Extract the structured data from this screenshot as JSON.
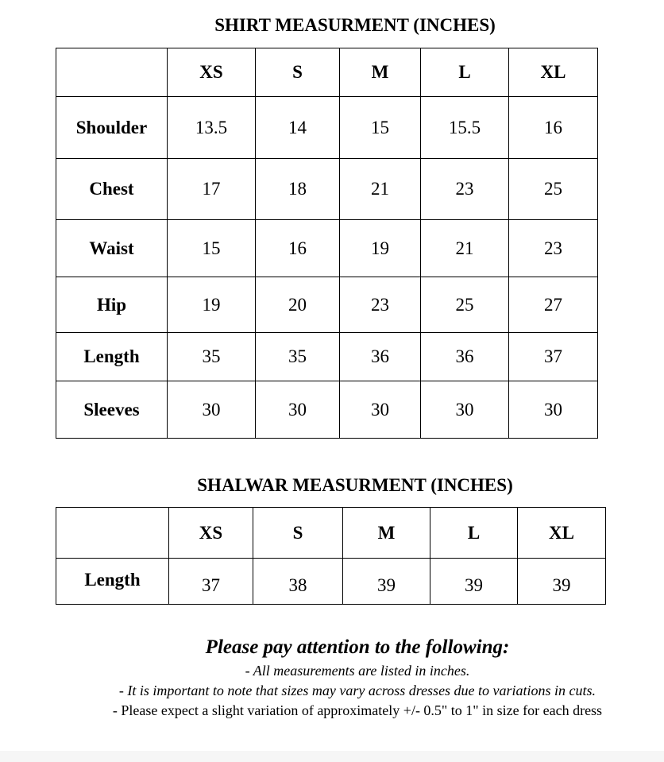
{
  "shirt": {
    "title": "SHIRT MEASURMENT (INCHES)",
    "sizes": [
      "XS",
      "S",
      "M",
      "L",
      "XL"
    ],
    "rows": [
      {
        "label": "Shoulder",
        "values": [
          "13.5",
          "14",
          "15",
          "15.5",
          "16"
        ]
      },
      {
        "label": "Chest",
        "values": [
          "17",
          "18",
          "21",
          "23",
          "25"
        ]
      },
      {
        "label": "Waist",
        "values": [
          "15",
          "16",
          "19",
          "21",
          "23"
        ]
      },
      {
        "label": "Hip",
        "values": [
          "19",
          "20",
          "23",
          "25",
          "27"
        ]
      },
      {
        "label": "Length",
        "values": [
          "35",
          "35",
          "36",
          "36",
          "37"
        ]
      },
      {
        "label": "Sleeves",
        "values": [
          "30",
          "30",
          "30",
          "30",
          "30"
        ]
      }
    ]
  },
  "shalwar": {
    "title": "SHALWAR MEASURMENT (INCHES)",
    "sizes": [
      "XS",
      "S",
      "M",
      "L",
      "XL"
    ],
    "rows": [
      {
        "label": "Length",
        "values": [
          "37",
          "38",
          "39",
          "39",
          "39"
        ]
      }
    ]
  },
  "notes": {
    "heading": "Please pay attention to the following:",
    "items": [
      "- All measurements are listed in inches.",
      "- It is important to note that sizes may vary across dresses due to variations in cuts.",
      "- Please expect a slight variation of approximately +/- 0.5\" to 1\" in size for each dress"
    ]
  }
}
